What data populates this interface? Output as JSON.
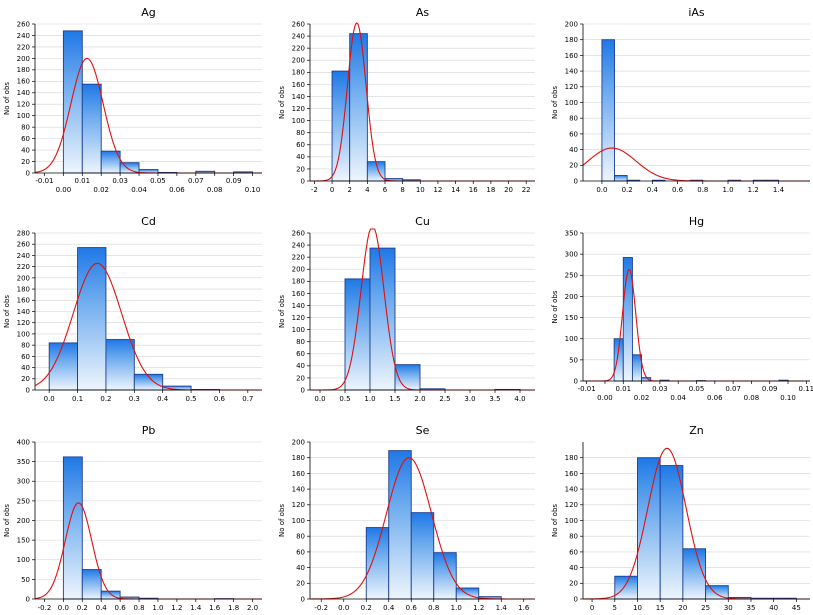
{
  "colors": {
    "bar_top": "#1f78e6",
    "bar_bottom": "#eef5fd",
    "bar_edge": "#1d3f8f",
    "curve": "#e01010",
    "grid": "#d4d4d4"
  },
  "ylabel": "No of obs",
  "chart_data": [
    {
      "type": "bar",
      "title": "Ag",
      "bars": [
        [
          0,
          0.01,
          248
        ],
        [
          0.01,
          0.02,
          155
        ],
        [
          0.02,
          0.03,
          38
        ],
        [
          0.03,
          0.04,
          18
        ],
        [
          0.04,
          0.05,
          6
        ],
        [
          0.05,
          0.06,
          1
        ],
        [
          0.06,
          0.07,
          0
        ],
        [
          0.07,
          0.08,
          3
        ],
        [
          0.08,
          0.09,
          0
        ],
        [
          0.09,
          0.1,
          2
        ]
      ],
      "normal": {
        "mean": 0.0125,
        "sd": 0.0085,
        "peak": 200
      },
      "xlim": [
        -0.015,
        0.105
      ],
      "ylim": [
        0,
        260
      ],
      "yticks": [
        0,
        20,
        40,
        60,
        80,
        100,
        120,
        140,
        160,
        180,
        200,
        220,
        240,
        260
      ],
      "xticks_top": [
        "-0.01",
        "0.01",
        "0.03",
        "0.05",
        "0.07",
        "0.09"
      ],
      "xticks_top_pos": [
        -0.01,
        0.01,
        0.03,
        0.05,
        0.07,
        0.09
      ],
      "xticks_bottom": [
        "0.00",
        "0.02",
        "0.04",
        "0.06",
        "0.08",
        "0.10"
      ],
      "xticks_bottom_pos": [
        0,
        0.02,
        0.04,
        0.06,
        0.08,
        0.1
      ]
    },
    {
      "type": "bar",
      "title": "As",
      "bars": [
        [
          0,
          2,
          182
        ],
        [
          2,
          4,
          244
        ],
        [
          4,
          6,
          32
        ],
        [
          6,
          8,
          4
        ],
        [
          8,
          10,
          2
        ],
        [
          10,
          12,
          0
        ],
        [
          12,
          14,
          0
        ],
        [
          14,
          16,
          0
        ],
        [
          16,
          18,
          0
        ],
        [
          18,
          20,
          0
        ],
        [
          20,
          22,
          0
        ]
      ],
      "normal": {
        "mean": 2.8,
        "sd": 1.05,
        "peak": 262
      },
      "xlim": [
        -2.5,
        23
      ],
      "ylim": [
        0,
        260
      ],
      "yticks": [
        0,
        20,
        40,
        60,
        80,
        100,
        120,
        140,
        160,
        180,
        200,
        220,
        240,
        260
      ],
      "xticks": [
        "-2",
        "0",
        "2",
        "4",
        "6",
        "8",
        "10",
        "12",
        "14",
        "16",
        "18",
        "20",
        "22"
      ],
      "xticks_pos": [
        -2,
        0,
        2,
        4,
        6,
        8,
        10,
        12,
        14,
        16,
        18,
        20,
        22
      ]
    },
    {
      "type": "bar",
      "title": "iAs",
      "bars": [
        [
          0,
          0.1,
          180
        ],
        [
          0.1,
          0.2,
          7
        ],
        [
          0.2,
          0.3,
          1
        ],
        [
          0.3,
          0.4,
          0
        ],
        [
          0.4,
          0.5,
          1
        ],
        [
          0.5,
          0.6,
          0
        ],
        [
          0.6,
          0.7,
          0
        ],
        [
          0.7,
          0.8,
          1
        ],
        [
          0.8,
          0.9,
          0
        ],
        [
          0.9,
          1,
          0
        ],
        [
          1,
          1.1,
          1
        ],
        [
          1.1,
          1.2,
          0
        ],
        [
          1.2,
          1.3,
          1
        ],
        [
          1.3,
          1.4,
          1
        ]
      ],
      "normal": {
        "mean": 0.08,
        "sd": 0.19,
        "peak": 42
      },
      "xlim": [
        -0.15,
        1.65
      ],
      "ylim": [
        0,
        200
      ],
      "yticks": [
        0,
        20,
        40,
        60,
        80,
        100,
        120,
        140,
        160,
        180,
        200
      ],
      "xticks": [
        "0.0",
        "0.2",
        "0.4",
        "0.6",
        "0.8",
        "1.0",
        "1.2",
        "1.4"
      ],
      "xticks_pos": [
        0,
        0.2,
        0.4,
        0.6,
        0.8,
        1.0,
        1.2,
        1.4
      ]
    },
    {
      "type": "bar",
      "title": "Cd",
      "bars": [
        [
          0,
          0.1,
          84
        ],
        [
          0.1,
          0.2,
          254
        ],
        [
          0.2,
          0.3,
          90
        ],
        [
          0.3,
          0.4,
          28
        ],
        [
          0.4,
          0.5,
          7
        ],
        [
          0.5,
          0.6,
          1
        ]
      ],
      "normal": {
        "mean": 0.17,
        "sd": 0.085,
        "peak": 226
      },
      "xlim": [
        -0.05,
        0.75
      ],
      "ylim": [
        0,
        280
      ],
      "yticks": [
        0,
        20,
        40,
        60,
        80,
        100,
        120,
        140,
        160,
        180,
        200,
        220,
        240,
        260,
        280
      ],
      "xticks": [
        "0.0",
        "0.1",
        "0.2",
        "0.3",
        "0.4",
        "0.5",
        "0.6",
        "0.7"
      ],
      "xticks_pos": [
        0,
        0.1,
        0.2,
        0.3,
        0.4,
        0.5,
        0.6,
        0.7
      ]
    },
    {
      "type": "bar",
      "title": "Cu",
      "bars": [
        [
          0.5,
          1,
          184
        ],
        [
          1,
          1.5,
          235
        ],
        [
          1.5,
          2,
          42
        ],
        [
          2,
          2.5,
          2
        ],
        [
          2.5,
          3,
          0
        ],
        [
          3,
          3.5,
          0
        ],
        [
          3.5,
          4,
          1
        ]
      ],
      "normal": {
        "mean": 1.05,
        "sd": 0.23,
        "peak": 272
      },
      "xlim": [
        -0.2,
        4.3
      ],
      "ylim": [
        0,
        260
      ],
      "yticks": [
        0,
        20,
        40,
        60,
        80,
        100,
        120,
        140,
        160,
        180,
        200,
        220,
        240,
        260
      ],
      "xticks": [
        "0.0",
        "0.5",
        "1.0",
        "1.5",
        "2.0",
        "2.5",
        "3.0",
        "3.5",
        "4.0"
      ],
      "xticks_pos": [
        0,
        0.5,
        1.0,
        1.5,
        2.0,
        2.5,
        3.0,
        3.5,
        4.0
      ]
    },
    {
      "type": "bar",
      "title": "Hg",
      "bars": [
        [
          0.005,
          0.01,
          100
        ],
        [
          0.01,
          0.015,
          292
        ],
        [
          0.015,
          0.02,
          62
        ],
        [
          0.02,
          0.025,
          8
        ],
        [
          0.025,
          0.03,
          0
        ],
        [
          0.03,
          0.035,
          2
        ],
        [
          0.035,
          0.04,
          0
        ],
        [
          0.04,
          0.045,
          0
        ],
        [
          0.045,
          0.05,
          0
        ],
        [
          0.05,
          0.055,
          1
        ],
        [
          0.055,
          0.06,
          0
        ],
        [
          0.06,
          0.065,
          0
        ],
        [
          0.065,
          0.07,
          0
        ],
        [
          0.07,
          0.075,
          0
        ],
        [
          0.075,
          0.08,
          0
        ],
        [
          0.08,
          0.085,
          0
        ],
        [
          0.085,
          0.09,
          0
        ],
        [
          0.09,
          0.095,
          0
        ],
        [
          0.095,
          0.1,
          2
        ]
      ],
      "normal": {
        "mean": 0.0132,
        "sd": 0.0036,
        "peak": 265
      },
      "xlim": [
        -0.012,
        0.112
      ],
      "ylim": [
        0,
        350
      ],
      "yticks": [
        0,
        50,
        100,
        150,
        200,
        250,
        300,
        350
      ],
      "xticks_top": [
        "-0.01",
        "0.01",
        "0.03",
        "0.05",
        "0.07",
        "0.09",
        "0.11"
      ],
      "xticks_top_pos": [
        -0.01,
        0.01,
        0.03,
        0.05,
        0.07,
        0.09,
        0.11
      ],
      "xticks_bottom": [
        "0.00",
        "0.02",
        "0.04",
        "0.06",
        "0.08",
        "0.10"
      ],
      "xticks_bottom_pos": [
        0,
        0.02,
        0.04,
        0.06,
        0.08,
        0.1
      ]
    },
    {
      "type": "bar",
      "title": "Pb",
      "bars": [
        [
          0,
          0.2,
          362
        ],
        [
          0.2,
          0.4,
          75
        ],
        [
          0.4,
          0.6,
          20
        ],
        [
          0.6,
          0.8,
          5
        ],
        [
          0.8,
          1,
          2
        ],
        [
          1,
          1.2,
          0
        ],
        [
          1.2,
          1.4,
          0
        ],
        [
          1.4,
          1.6,
          0
        ],
        [
          1.6,
          1.8,
          1
        ]
      ],
      "normal": {
        "mean": 0.16,
        "sd": 0.14,
        "peak": 245
      },
      "xlim": [
        -0.3,
        2.1
      ],
      "ylim": [
        0,
        400
      ],
      "yticks": [
        0,
        50,
        100,
        150,
        200,
        250,
        300,
        350,
        400
      ],
      "xticks": [
        "-0.2",
        "0.0",
        "0.2",
        "0.4",
        "0.6",
        "0.8",
        "1.0",
        "1.2",
        "1.4",
        "1.6",
        "1.8",
        "2.0"
      ],
      "xticks_pos": [
        -0.2,
        0,
        0.2,
        0.4,
        0.6,
        0.8,
        1.0,
        1.2,
        1.4,
        1.6,
        1.8,
        2.0
      ]
    },
    {
      "type": "bar",
      "title": "Se",
      "bars": [
        [
          0.2,
          0.4,
          91
        ],
        [
          0.4,
          0.6,
          189
        ],
        [
          0.6,
          0.8,
          110
        ],
        [
          0.8,
          1,
          59
        ],
        [
          1,
          1.2,
          14
        ],
        [
          1.2,
          1.4,
          3
        ]
      ],
      "normal": {
        "mean": 0.58,
        "sd": 0.2,
        "peak": 180
      },
      "xlim": [
        -0.3,
        1.7
      ],
      "ylim": [
        0,
        200
      ],
      "yticks": [
        0,
        20,
        40,
        60,
        80,
        100,
        120,
        140,
        160,
        180,
        200
      ],
      "xticks": [
        "-0.2",
        "0.0",
        "0.2",
        "0.4",
        "0.6",
        "0.8",
        "1.0",
        "1.2",
        "1.4",
        "1.6"
      ],
      "xticks_pos": [
        -0.2,
        0,
        0.2,
        0.4,
        0.6,
        0.8,
        1.0,
        1.2,
        1.4,
        1.6
      ]
    },
    {
      "type": "bar",
      "title": "Zn",
      "bars": [
        [
          5,
          10,
          29
        ],
        [
          10,
          15,
          180
        ],
        [
          15,
          20,
          170
        ],
        [
          20,
          25,
          64
        ],
        [
          25,
          30,
          17
        ],
        [
          30,
          35,
          2
        ],
        [
          35,
          40,
          1
        ],
        [
          40,
          45,
          1
        ]
      ],
      "normal": {
        "mean": 16.5,
        "sd": 4.2,
        "peak": 192
      },
      "xlim": [
        -2,
        48
      ],
      "ylim": [
        0,
        200
      ],
      "yticks": [
        0,
        20,
        40,
        60,
        80,
        100,
        120,
        140,
        160,
        180
      ],
      "xticks": [
        "0",
        "5",
        "10",
        "15",
        "20",
        "25",
        "30",
        "35",
        "40",
        "45"
      ],
      "xticks_pos": [
        0,
        5,
        10,
        15,
        20,
        25,
        30,
        35,
        40,
        45
      ]
    }
  ]
}
